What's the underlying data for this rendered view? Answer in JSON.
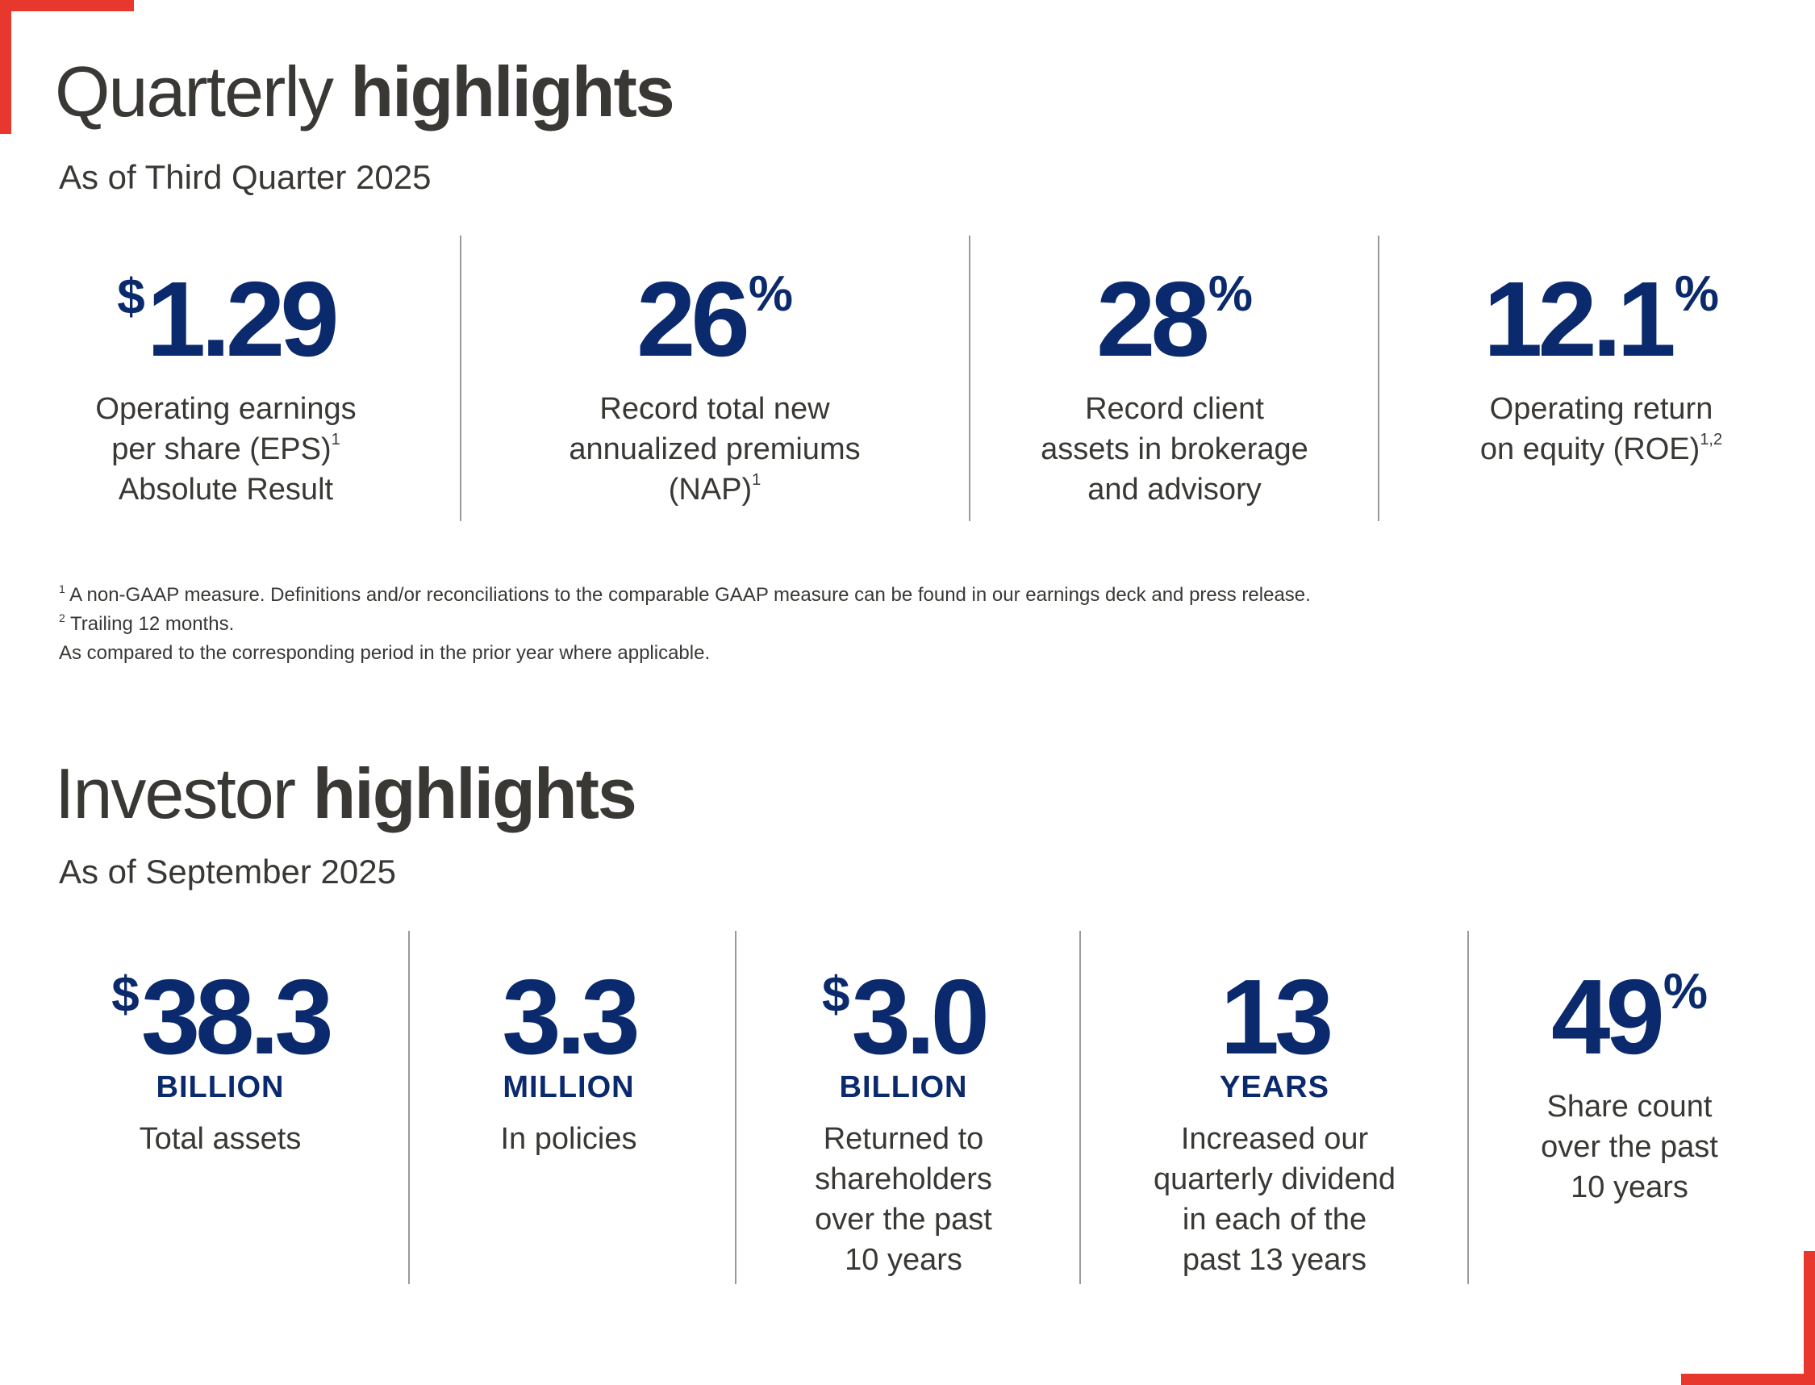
{
  "quarterly": {
    "title_light": "Quarterly",
    "title_bold": "highlights",
    "subtitle": "As of Third Quarter 2025",
    "stats": [
      {
        "prefix": "$",
        "value": "1.29",
        "suffix": "",
        "desc": [
          [
            "Operating earnings",
            ""
          ],
          [
            "per share (EPS)",
            "1"
          ],
          [
            "Absolute Result",
            ""
          ]
        ]
      },
      {
        "prefix": "",
        "value": "26",
        "suffix": "%",
        "desc": [
          [
            "Record total new",
            ""
          ],
          [
            "annualized premiums",
            ""
          ],
          [
            "(NAP)",
            "1"
          ]
        ]
      },
      {
        "prefix": "",
        "value": "28",
        "suffix": "%",
        "desc": [
          [
            "Record client",
            ""
          ],
          [
            "assets in brokerage",
            ""
          ],
          [
            "and advisory",
            ""
          ]
        ]
      },
      {
        "prefix": "",
        "value": "12.1",
        "suffix": "%",
        "desc": [
          [
            "Operating return",
            ""
          ],
          [
            "on equity (ROE)",
            "1,2"
          ]
        ]
      }
    ]
  },
  "footnotes": [
    {
      "mark": "1",
      "text": "A non-GAAP measure. Definitions and/or reconciliations to the comparable GAAP measure can be found in our earnings deck and press release."
    },
    {
      "mark": "2",
      "text": "Trailing 12 months."
    },
    {
      "mark": "",
      "text": "As compared to the corresponding period in the prior year where applicable."
    }
  ],
  "investor": {
    "title_light": "Investor",
    "title_bold": "highlights",
    "subtitle": "As of September 2025",
    "stats": [
      {
        "prefix": "$",
        "value": "38.3",
        "suffix": "",
        "unit": "BILLION",
        "desc": [
          "Total assets"
        ]
      },
      {
        "prefix": "",
        "value": "3.3",
        "suffix": "",
        "unit": "MILLION",
        "desc": [
          "In policies"
        ]
      },
      {
        "prefix": "$",
        "value": "3.0",
        "suffix": "",
        "unit": "BILLION",
        "desc": [
          "Returned to",
          "shareholders",
          "over the past",
          "10 years"
        ]
      },
      {
        "prefix": "",
        "value": "13",
        "suffix": "",
        "unit": "YEARS",
        "desc": [
          "Increased our",
          "quarterly dividend",
          "in each of the",
          "past 13 years"
        ]
      },
      {
        "prefix": "",
        "value": "49",
        "suffix": "%",
        "unit": "",
        "desc": [
          "Share count",
          "over the past",
          "10 years"
        ]
      }
    ]
  },
  "colors": {
    "accent": "#e8372d",
    "navy": "#0b2a6e",
    "text": "#3a3835",
    "divider": "#9a9a9a"
  }
}
